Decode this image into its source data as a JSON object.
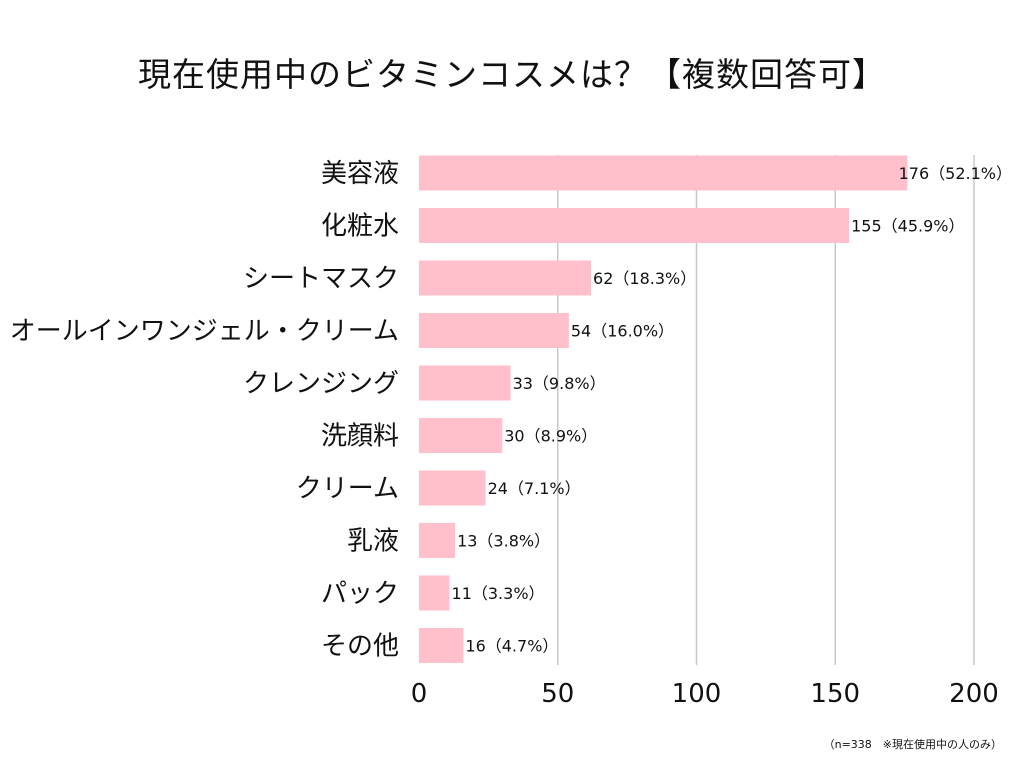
{
  "chart_data": {
    "type": "bar",
    "orientation": "horizontal",
    "title": "現在使用中のビタミンコスメは？【複数回答可】",
    "categories": [
      "美容液",
      "化粧水",
      "シートマスク",
      "オールインワンジェル・クリーム",
      "クレンジング",
      "洗顔料",
      "クリーム",
      "乳液",
      "パック",
      "その他"
    ],
    "values": [
      176,
      155,
      62,
      54,
      33,
      30,
      24,
      13,
      11,
      16
    ],
    "value_labels": [
      "176（52.1%）",
      "155（45.9%）",
      "62（18.3%）",
      "54（16.0%）",
      "33（9.8%）",
      "30（8.9%）",
      "24（7.1%）",
      "13（3.8%）",
      "11（3.3%）",
      "16（4.7%）"
    ],
    "xlim": [
      0,
      200
    ],
    "xticks": [
      0,
      50,
      100,
      150,
      200
    ],
    "grid": true,
    "colors": {
      "bar": "#FFBFCB",
      "grid": "#c8c8c8"
    },
    "note": "（n=338　※現在使用中の人のみ）"
  }
}
